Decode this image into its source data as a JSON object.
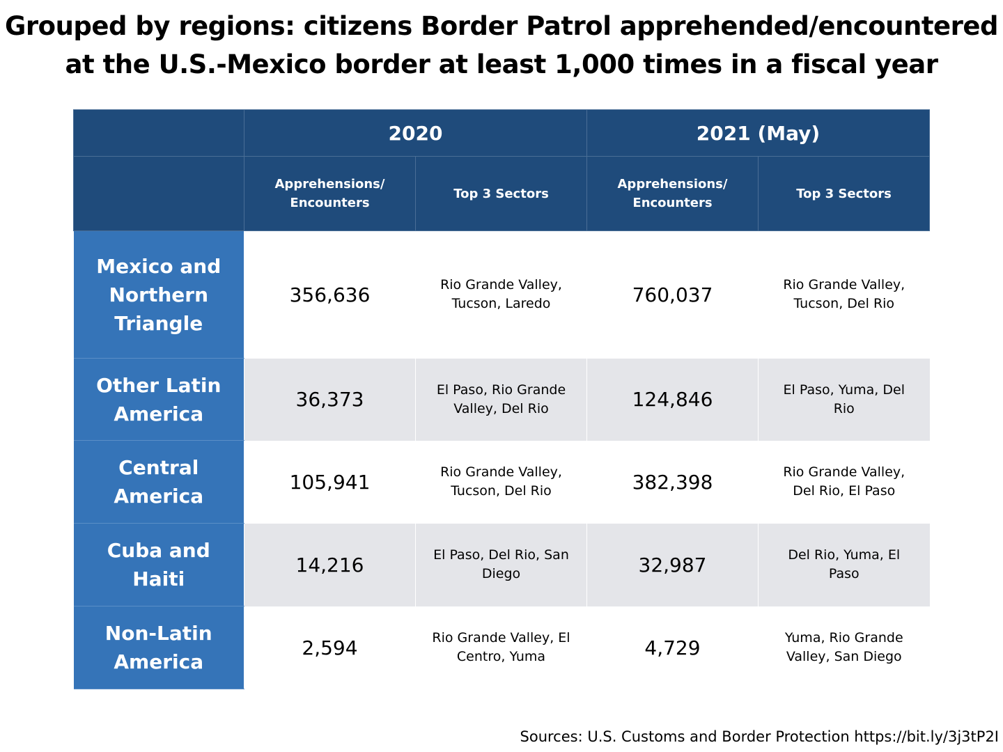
{
  "chart_data": {
    "type": "table",
    "title": "Grouped by regions: citizens Border Patrol apprehended/encountered at the U.S.-Mexico border at least 1,000 times in a fiscal year",
    "groups": [
      "2020",
      "2021 (May)"
    ],
    "columns": [
      "Apprehensions/ Encounters",
      "Top 3 Sectors",
      "Apprehensions/ Encounters",
      "Top 3 Sectors"
    ],
    "rows": [
      {
        "region": "Mexico and Northern Triangle",
        "a2020": "356,636",
        "s2020": "Rio Grande Valley, Tucson, Laredo",
        "a2021": "760,037",
        "s2021": "Rio Grande Valley, Tucson, Del Rio"
      },
      {
        "region": "Other Latin America",
        "a2020": "36,373",
        "s2020": "El Paso, Rio Grande Valley, Del Rio",
        "a2021": "124,846",
        "s2021": "El Paso, Yuma, Del Rio"
      },
      {
        "region": "Central America",
        "a2020": "105,941",
        "s2020": "Rio Grande Valley, Tucson, Del Rio",
        "a2021": "382,398",
        "s2021": "Rio Grande Valley, Del Rio, El Paso"
      },
      {
        "region": "Cuba and Haiti",
        "a2020": "14,216",
        "s2020": "El Paso, Del Rio, San Diego",
        "a2021": "32,987",
        "s2021": "Del Rio, Yuma, El Paso"
      },
      {
        "region": "Non-Latin America",
        "a2020": "2,594",
        "s2020": "Rio Grande Valley, El Centro, Yuma",
        "a2021": "4,729",
        "s2021": "Yuma, Rio Grande Valley, San Diego"
      }
    ],
    "source": "Sources: U.S. Customs and Border Protection https://bit.ly/3j3tP2I",
    "colors": {
      "header": "#1f4b7b",
      "region": "#3574b8",
      "alt_row": "#e4e5e9"
    }
  }
}
